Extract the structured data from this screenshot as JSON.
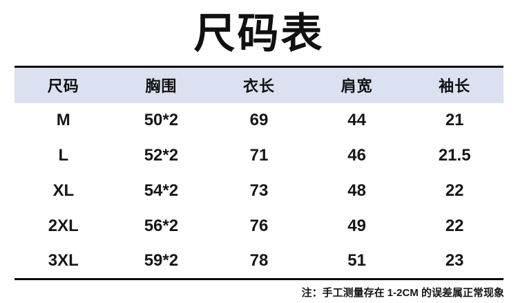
{
  "title": "尺码表",
  "table": {
    "headers": [
      "尺码",
      "胸围",
      "衣长",
      "肩宽",
      "袖长"
    ],
    "rows": [
      [
        "M",
        "50*2",
        "69",
        "44",
        "21"
      ],
      [
        "L",
        "52*2",
        "71",
        "46",
        "21.5"
      ],
      [
        "XL",
        "54*2",
        "73",
        "48",
        "22"
      ],
      [
        "2XL",
        "56*2",
        "76",
        "49",
        "22"
      ],
      [
        "3XL",
        "59*2",
        "78",
        "51",
        "23"
      ]
    ]
  },
  "footnote": "注：手工测量存在 1-2CM 的误差属正常现象",
  "colors": {
    "header_bg": "#dbe1f0",
    "rule": "#0a0a0a",
    "text": "#161616",
    "background": "#ffffff"
  }
}
